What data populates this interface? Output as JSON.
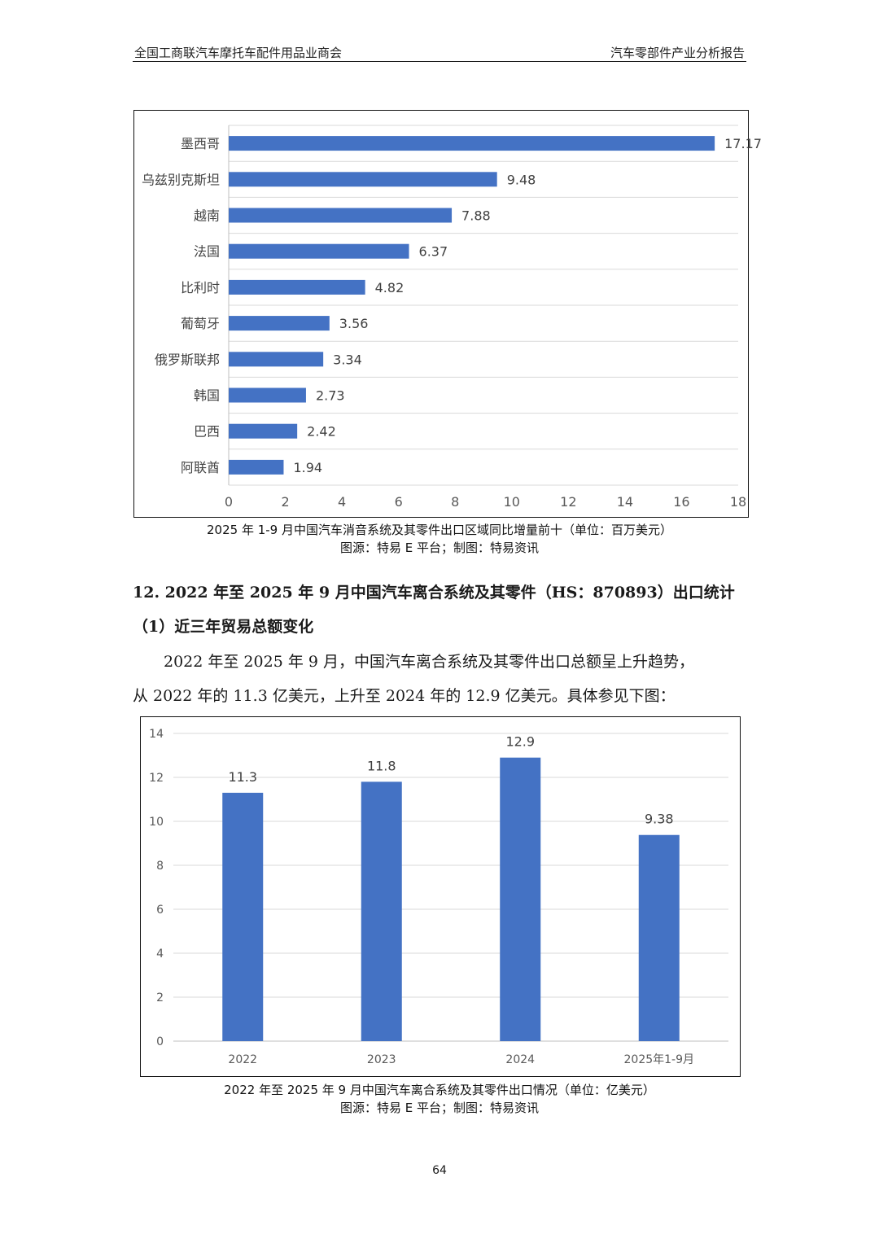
{
  "header": {
    "left": "全国工商联汽车摩托车配件用品业商会",
    "right": "汽车零部件产业分析报告"
  },
  "charts": [
    {
      "type": "bar",
      "orientation": "horizontal",
      "categories": [
        "墨西哥",
        "乌兹别克斯坦",
        "越南",
        "法国",
        "比利时",
        "葡萄牙",
        "俄罗斯联邦",
        "韩国",
        "巴西",
        "阿联酋"
      ],
      "values": [
        17.17,
        9.48,
        7.88,
        6.37,
        4.82,
        3.56,
        3.34,
        2.73,
        2.42,
        1.94
      ],
      "value_labels": [
        "17.17",
        "9.48",
        "7.88",
        "6.37",
        "4.82",
        "3.56",
        "3.34",
        "2.73",
        "2.42",
        "1.94"
      ],
      "xlim": [
        0,
        18
      ],
      "x_ticks": [
        "0",
        "2",
        "4",
        "6",
        "8",
        "10",
        "12",
        "14",
        "16",
        "18"
      ],
      "grid": true,
      "bar_color": "#4472c4"
    },
    {
      "type": "bar",
      "orientation": "vertical",
      "categories": [
        "2022",
        "2023",
        "2024",
        "2025年1-9月"
      ],
      "values": [
        11.3,
        11.8,
        12.9,
        9.38
      ],
      "value_labels": [
        "11.3",
        "11.8",
        "12.9",
        "9.38"
      ],
      "ylim": [
        0,
        14
      ],
      "y_ticks": [
        "0",
        "2",
        "4",
        "6",
        "8",
        "10",
        "12",
        "14"
      ],
      "grid": true,
      "bar_color": "#4472c4"
    }
  ],
  "captions": {
    "chart1_title": "2025 年 1-9 月中国汽车消音系统及其零件出口区域同比增量前十（单位：百万美元）",
    "chart1_source": "图源：特易 E 平台；制图：特易资讯",
    "chart2_title": "2022 年至 2025 年 9 月中国汽车离合系统及其零件出口情况（单位：亿美元）",
    "chart2_source": "图源：特易 E 平台；制图：特易资讯"
  },
  "section": {
    "heading": "12.  2022 年至 2025 年 9 月中国汽车离合系统及其零件（HS：870893）出口统计",
    "subheading": "（1）近三年贸易总额变化",
    "para_line1": "2022 年至 2025 年 9 月，中国汽车离合系统及其零件出口总额呈上升趋势，",
    "para_line2": "从 2022 年的 11.3 亿美元，上升至 2024 年的 12.9 亿美元。具体参见下图："
  },
  "page_number": "64"
}
